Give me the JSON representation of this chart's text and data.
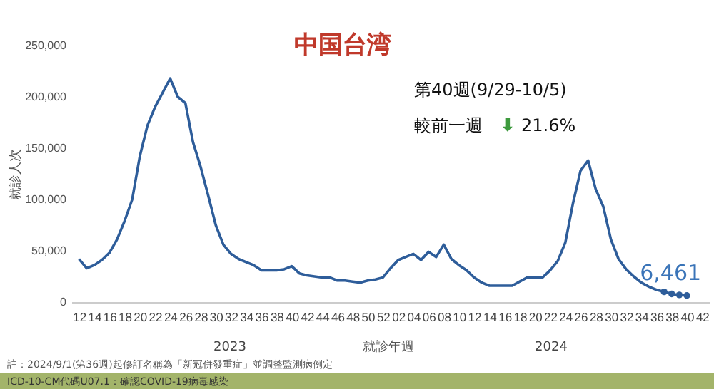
{
  "chart_data": {
    "type": "line",
    "title": "中国台湾",
    "xlabel": "就診年週",
    "ylabel": "就診人次",
    "annotations": [
      "第40週(9/29-10/5)",
      "較前一週",
      "⬇",
      "21.6%",
      "2023",
      "2024",
      "註：2024/9/1(第36週)起修訂名稱為「新冠併發重症」並調整監測病例定",
      "ICD-10-CM代碼U07.1：確認COVID-19病毒感染"
    ],
    "categories": [
      "12",
      null,
      "14",
      null,
      "16",
      null,
      "18",
      null,
      "20",
      null,
      "22",
      null,
      "24",
      null,
      "26",
      null,
      "28",
      null,
      "30",
      null,
      "32",
      null,
      "34",
      null,
      "36",
      null,
      "38",
      null,
      "40",
      null,
      "42",
      null,
      "44",
      null,
      "46",
      null,
      "48",
      null,
      "50",
      null,
      "52",
      null,
      "02",
      null,
      "04",
      null,
      "06",
      null,
      "08",
      null,
      "10",
      null,
      "12",
      null,
      "14",
      null,
      "16",
      null,
      "18",
      null,
      "20",
      null,
      "22",
      null,
      "24",
      null,
      "26",
      null,
      "28",
      null,
      "30",
      null,
      "32",
      null,
      "34",
      null,
      "36",
      null,
      "38",
      null,
      "40",
      null,
      "42"
    ],
    "series": [
      {
        "color": "#2e5d9a",
        "type": "line",
        "values": [
          42000,
          33000,
          36000,
          41000,
          48000,
          61000,
          79000,
          100000,
          142000,
          172000,
          190000,
          204000,
          218000,
          200000,
          194000,
          156000,
          132000,
          104000,
          75000,
          56000,
          47000,
          42000,
          39000,
          36000,
          31000,
          31000,
          31000,
          32000,
          35000,
          28000,
          26000,
          25000,
          24000,
          24000,
          21000,
          21000,
          20000,
          19000,
          21000,
          22000,
          24000,
          33000,
          41000,
          44000,
          47000,
          41000,
          49000,
          44000,
          56000,
          42000,
          36000,
          31000,
          24000,
          19000,
          16000,
          16000,
          16000,
          16000,
          20000,
          24000,
          24000,
          24000,
          31000,
          40000,
          58000,
          96000,
          128000,
          138000,
          110000,
          93000,
          61000,
          42000,
          32000,
          25000,
          19000,
          15000,
          12000,
          10000,
          8000,
          7000,
          6461,
          null,
          null
        ],
        "value_labels": [
          null,
          null,
          null,
          null,
          null,
          null,
          null,
          null,
          null,
          null,
          null,
          null,
          null,
          null,
          null,
          null,
          null,
          null,
          null,
          null,
          null,
          null,
          null,
          null,
          null,
          null,
          null,
          null,
          null,
          null,
          null,
          null,
          null,
          null,
          null,
          null,
          null,
          null,
          null,
          null,
          null,
          null,
          null,
          null,
          null,
          null,
          null,
          null,
          null,
          null,
          null,
          null,
          null,
          null,
          null,
          null,
          null,
          null,
          null,
          null,
          null,
          null,
          null,
          null,
          null,
          null,
          null,
          null,
          null,
          null,
          null,
          null,
          null,
          null,
          null,
          null,
          null,
          null,
          null,
          null,
          "6,461",
          null,
          null
        ]
      },
      {
        "color": "#2e5d9a",
        "type": "scatter",
        "marker": "circle",
        "values": [
          null,
          null,
          null,
          null,
          null,
          null,
          null,
          null,
          null,
          null,
          null,
          null,
          null,
          null,
          null,
          null,
          null,
          null,
          null,
          null,
          null,
          null,
          null,
          null,
          null,
          null,
          null,
          null,
          null,
          null,
          null,
          null,
          null,
          null,
          null,
          null,
          null,
          null,
          null,
          null,
          null,
          null,
          null,
          null,
          null,
          null,
          null,
          null,
          null,
          null,
          null,
          null,
          null,
          null,
          null,
          null,
          null,
          null,
          null,
          null,
          null,
          null,
          null,
          null,
          null,
          null,
          null,
          null,
          null,
          null,
          null,
          null,
          null,
          null,
          null,
          null,
          null,
          10000,
          8000,
          7000,
          6461,
          null,
          null
        ]
      }
    ],
    "ylim": [
      0,
      250000
    ],
    "yticks": [
      {
        "value": 0,
        "label": "0"
      },
      {
        "value": 50000,
        "label": "50,000"
      },
      {
        "value": 100000,
        "label": "100,000"
      },
      {
        "value": 150000,
        "label": "150,000"
      },
      {
        "value": 200000,
        "label": "200,000"
      },
      {
        "value": 250000,
        "label": "250,000"
      }
    ],
    "grid": false,
    "marker": "none",
    "line_style": "solid"
  }
}
